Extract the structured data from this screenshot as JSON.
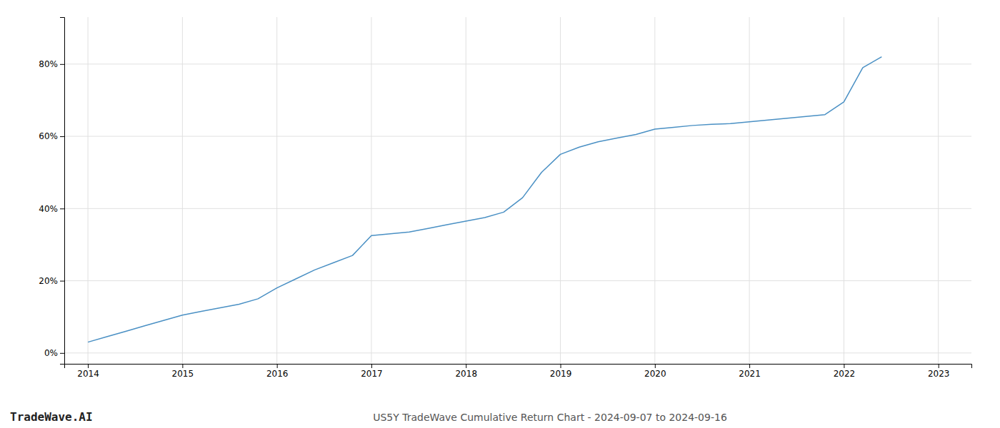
{
  "chart_data": {
    "type": "line",
    "title": "US5Y TradeWave Cumulative Return Chart - 2024-09-07 to 2024-09-16",
    "annotations": [
      "TradeWave.AI"
    ],
    "color": "#4a90c4",
    "grid": true,
    "x": [
      2014.0,
      2014.2,
      2014.4,
      2014.6,
      2014.8,
      2015.0,
      2015.2,
      2015.4,
      2015.6,
      2015.8,
      2016.0,
      2016.2,
      2016.4,
      2016.6,
      2016.8,
      2017.0,
      2017.2,
      2017.4,
      2017.6,
      2017.8,
      2018.0,
      2018.2,
      2018.4,
      2018.6,
      2018.8,
      2019.0,
      2019.2,
      2019.4,
      2019.6,
      2019.8,
      2020.0,
      2020.2,
      2020.4,
      2020.6,
      2020.8,
      2021.0,
      2021.2,
      2021.4,
      2021.6,
      2021.8,
      2022.0,
      2022.2,
      2022.4
    ],
    "values": [
      3.0,
      4.5,
      6.0,
      7.5,
      9.0,
      10.5,
      11.5,
      12.5,
      13.5,
      15.0,
      18.0,
      20.5,
      23.0,
      25.0,
      27.0,
      32.5,
      33.0,
      33.5,
      34.5,
      35.5,
      36.5,
      37.5,
      39.0,
      43.0,
      50.0,
      55.0,
      57.0,
      58.5,
      59.5,
      60.5,
      62.0,
      62.5,
      63.0,
      63.3,
      63.5,
      64.0,
      64.5,
      65.0,
      65.5,
      66.0,
      69.5,
      79.0,
      82.0
    ],
    "xlim": [
      2013.75,
      2023.35
    ],
    "ylim": [
      -3,
      93
    ],
    "xticks": [
      2014,
      2015,
      2016,
      2017,
      2018,
      2019,
      2020,
      2021,
      2022,
      2023
    ],
    "yticks": [
      {
        "value": 0,
        "label": "0%"
      },
      {
        "value": 20,
        "label": "20%"
      },
      {
        "value": 40,
        "label": "40%"
      },
      {
        "value": 60,
        "label": "60%"
      },
      {
        "value": 80,
        "label": "80%"
      }
    ]
  }
}
